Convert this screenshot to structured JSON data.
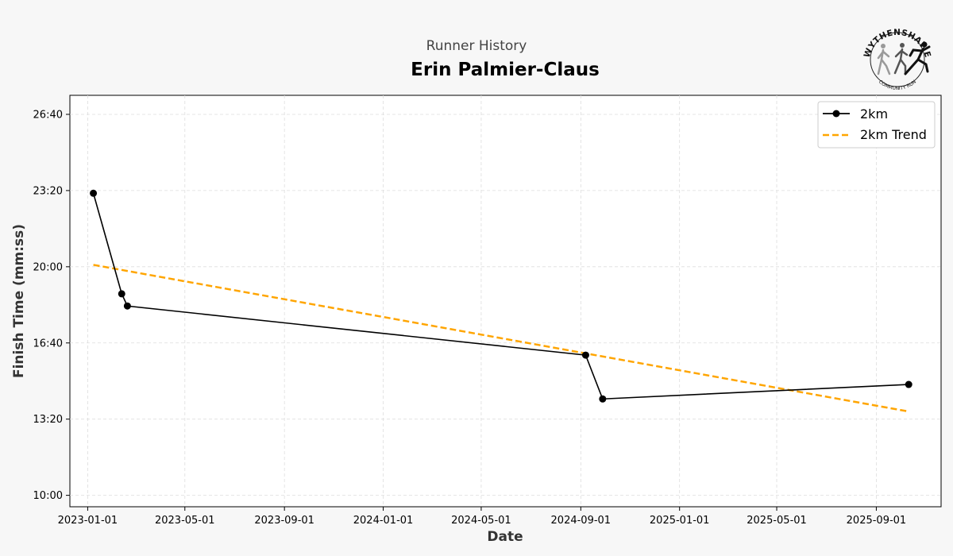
{
  "header": {
    "subtitle": "Runner History",
    "title": "Erin Palmier-Claus"
  },
  "logo": {
    "text_top": "WYTHENSHAWE",
    "text_bottom": "COMMUNITY RUN"
  },
  "colors": {
    "series": "#000000",
    "trend": "#ffa500",
    "grid": "#dddddd",
    "background": "#f7f7f7",
    "plot_background": "#ffffff"
  },
  "chart_data": {
    "type": "line",
    "xlabel": "Date",
    "ylabel": "Finish Time (mm:ss)",
    "x_range": [
      "2022-12-10",
      "2025-11-20"
    ],
    "y_range_seconds": [
      570,
      1650
    ],
    "x_ticks": [
      "2023-01-01",
      "2023-05-01",
      "2023-09-01",
      "2024-01-01",
      "2024-05-01",
      "2024-09-01",
      "2025-01-01",
      "2025-05-01",
      "2025-09-01"
    ],
    "y_ticks": [
      {
        "seconds": 600,
        "label": "10:00"
      },
      {
        "seconds": 800,
        "label": "13:20"
      },
      {
        "seconds": 1000,
        "label": "16:40"
      },
      {
        "seconds": 1200,
        "label": "20:00"
      },
      {
        "seconds": 1400,
        "label": "23:20"
      },
      {
        "seconds": 1600,
        "label": "26:40"
      }
    ],
    "grid": true,
    "legend_position": "top-right",
    "series": [
      {
        "name": "2km",
        "style": "solid-line-with-markers",
        "points": [
          {
            "date": "2023-01-08",
            "seconds": 1393
          },
          {
            "date": "2023-02-12",
            "seconds": 1129
          },
          {
            "date": "2023-02-19",
            "seconds": 1097
          },
          {
            "date": "2024-09-07",
            "seconds": 968
          },
          {
            "date": "2024-09-28",
            "seconds": 853
          },
          {
            "date": "2025-10-11",
            "seconds": 891
          }
        ]
      },
      {
        "name": "2km Trend",
        "style": "dashed-line",
        "points": [
          {
            "date": "2023-01-08",
            "seconds": 1205
          },
          {
            "date": "2025-10-11",
            "seconds": 820
          }
        ]
      }
    ]
  }
}
